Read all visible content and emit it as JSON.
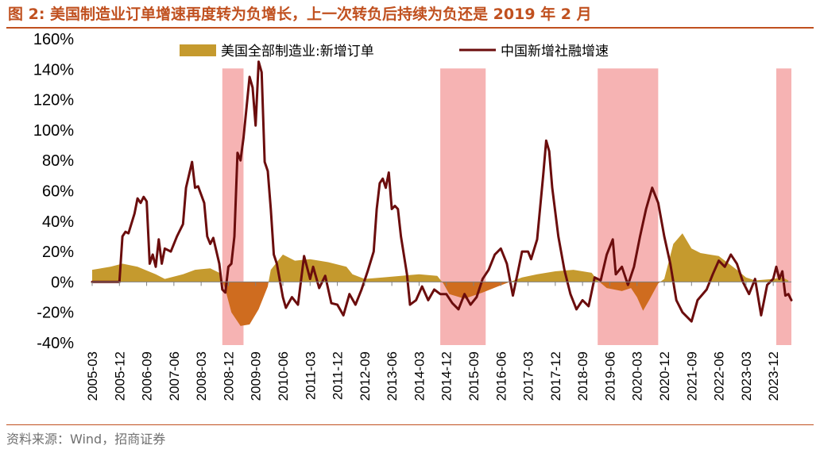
{
  "header": {
    "title": "图 2:  美国制造业订单增速再度转为负增长，上一次转负后持续为负还是 2019 年 2 月"
  },
  "footer": {
    "source": "资料来源：Wind，招商证券"
  },
  "colors": {
    "title": "#c0501f",
    "line": "#6b0d0d",
    "area_positive": "#c59a2e",
    "area_negative": "#cf6c1f",
    "shade": "#f4a6a6"
  },
  "chart_data": {
    "type": "line",
    "title": "",
    "xlabel": "",
    "ylabel": "",
    "ylim": [
      -40,
      160
    ],
    "yticks": [
      "160%",
      "140%",
      "120%",
      "100%",
      "80%",
      "60%",
      "40%",
      "20%",
      "0%",
      "-20%",
      "-40%"
    ],
    "ytick_values": [
      160,
      140,
      120,
      100,
      80,
      60,
      40,
      20,
      0,
      -20,
      -40
    ],
    "xticks": [
      "2005-03",
      "2005-12",
      "2006-09",
      "2007-06",
      "2008-03",
      "2008-12",
      "2009-09",
      "2010-06",
      "2011-03",
      "2011-12",
      "2012-09",
      "2013-06",
      "2014-03",
      "2014-12",
      "2015-09",
      "2016-06",
      "2017-03",
      "2017-12",
      "2018-09",
      "2019-06",
      "2020-03",
      "2020-12",
      "2021-09",
      "2022-06",
      "2023-03",
      "2023-12"
    ],
    "x_range": [
      "2005-03",
      "2024-06"
    ],
    "grid": false,
    "legend_position": "top",
    "legend": {
      "area": "美国全部制造业:新增订单",
      "line": "中国新增社融增速"
    },
    "shaded_periods": [
      {
        "start": "2008-10",
        "end": "2009-05"
      },
      {
        "start": "2014-10",
        "end": "2016-01"
      },
      {
        "start": "2019-02",
        "end": "2020-10"
      },
      {
        "start": "2024-01",
        "end": "2024-06"
      }
    ],
    "series": [
      {
        "name": "美国全部制造业:新增订单",
        "type": "area",
        "points": [
          [
            "2005-03",
            8
          ],
          [
            "2005-09",
            10
          ],
          [
            "2006-01",
            12
          ],
          [
            "2006-06",
            10
          ],
          [
            "2006-12",
            5
          ],
          [
            "2007-03",
            2
          ],
          [
            "2007-09",
            5
          ],
          [
            "2008-01",
            8
          ],
          [
            "2008-06",
            9
          ],
          [
            "2008-09",
            6
          ],
          [
            "2008-11",
            -5
          ],
          [
            "2009-01",
            -20
          ],
          [
            "2009-04",
            -29
          ],
          [
            "2009-07",
            -28
          ],
          [
            "2009-10",
            -18
          ],
          [
            "2010-01",
            -3
          ],
          [
            "2010-02",
            8
          ],
          [
            "2010-06",
            18
          ],
          [
            "2010-10",
            14
          ],
          [
            "2011-03",
            15
          ],
          [
            "2011-09",
            13
          ],
          [
            "2012-03",
            10
          ],
          [
            "2012-05",
            5
          ],
          [
            "2012-09",
            2
          ],
          [
            "2013-03",
            3
          ],
          [
            "2013-09",
            4
          ],
          [
            "2014-03",
            5
          ],
          [
            "2014-09",
            4
          ],
          [
            "2014-11",
            -1
          ],
          [
            "2015-01",
            -8
          ],
          [
            "2015-06",
            -11
          ],
          [
            "2015-12",
            -7
          ],
          [
            "2016-05",
            -3
          ],
          [
            "2016-09",
            0
          ],
          [
            "2017-01",
            3
          ],
          [
            "2017-06",
            5
          ],
          [
            "2017-12",
            7
          ],
          [
            "2018-06",
            8
          ],
          [
            "2018-12",
            6
          ],
          [
            "2019-02",
            1
          ],
          [
            "2019-05",
            -4
          ],
          [
            "2019-10",
            -6
          ],
          [
            "2020-01",
            -4
          ],
          [
            "2020-03",
            -10
          ],
          [
            "2020-05",
            -19
          ],
          [
            "2020-07",
            -12
          ],
          [
            "2020-10",
            -1
          ],
          [
            "2020-12",
            2
          ],
          [
            "2021-03",
            25
          ],
          [
            "2021-06",
            32
          ],
          [
            "2021-09",
            22
          ],
          [
            "2021-12",
            19
          ],
          [
            "2022-06",
            17
          ],
          [
            "2022-12",
            8
          ],
          [
            "2023-03",
            3
          ],
          [
            "2023-06",
            1
          ],
          [
            "2023-12",
            2
          ],
          [
            "2024-03",
            3
          ],
          [
            "2024-05",
            1
          ]
        ]
      },
      {
        "name": "中国新增社融增速",
        "type": "line",
        "points": [
          [
            "2005-03",
            0
          ],
          [
            "2005-05",
            0
          ],
          [
            "2005-08",
            0
          ],
          [
            "2005-11",
            0
          ],
          [
            "2005-12",
            0
          ],
          [
            "2006-01",
            30
          ],
          [
            "2006-02",
            33
          ],
          [
            "2006-03",
            32
          ],
          [
            "2006-05",
            45
          ],
          [
            "2006-06",
            55
          ],
          [
            "2006-07",
            52
          ],
          [
            "2006-08",
            56
          ],
          [
            "2006-09",
            53
          ],
          [
            "2006-10",
            12
          ],
          [
            "2006-11",
            18
          ],
          [
            "2006-12",
            10
          ],
          [
            "2007-01",
            28
          ],
          [
            "2007-02",
            12
          ],
          [
            "2007-03",
            22
          ],
          [
            "2007-05",
            20
          ],
          [
            "2007-07",
            30
          ],
          [
            "2007-09",
            38
          ],
          [
            "2007-10",
            62
          ],
          [
            "2007-12",
            79
          ],
          [
            "2008-01",
            62
          ],
          [
            "2008-02",
            63
          ],
          [
            "2008-04",
            52
          ],
          [
            "2008-05",
            30
          ],
          [
            "2008-06",
            25
          ],
          [
            "2008-07",
            29
          ],
          [
            "2008-09",
            12
          ],
          [
            "2008-10",
            -5
          ],
          [
            "2008-11",
            -7
          ],
          [
            "2008-12",
            10
          ],
          [
            "2009-01",
            12
          ],
          [
            "2009-02",
            30
          ],
          [
            "2009-03",
            85
          ],
          [
            "2009-04",
            80
          ],
          [
            "2009-05",
            95
          ],
          [
            "2009-06",
            115
          ],
          [
            "2009-07",
            135
          ],
          [
            "2009-08",
            128
          ],
          [
            "2009-09",
            103
          ],
          [
            "2009-10",
            145
          ],
          [
            "2009-11",
            138
          ],
          [
            "2009-12",
            79
          ],
          [
            "2010-01",
            73
          ],
          [
            "2010-02",
            48
          ],
          [
            "2010-03",
            18
          ],
          [
            "2010-04",
            12
          ],
          [
            "2010-06",
            -10
          ],
          [
            "2010-07",
            -17
          ],
          [
            "2010-09",
            -10
          ],
          [
            "2010-11",
            -15
          ],
          [
            "2011-01",
            17
          ],
          [
            "2011-03",
            2
          ],
          [
            "2011-04",
            10
          ],
          [
            "2011-06",
            -4
          ],
          [
            "2011-08",
            4
          ],
          [
            "2011-10",
            -14
          ],
          [
            "2011-12",
            -15
          ],
          [
            "2012-02",
            -22
          ],
          [
            "2012-04",
            -8
          ],
          [
            "2012-06",
            -15
          ],
          [
            "2012-08",
            -5
          ],
          [
            "2012-10",
            7
          ],
          [
            "2012-12",
            20
          ],
          [
            "2013-01",
            48
          ],
          [
            "2013-02",
            65
          ],
          [
            "2013-03",
            68
          ],
          [
            "2013-04",
            62
          ],
          [
            "2013-05",
            72
          ],
          [
            "2013-06",
            48
          ],
          [
            "2013-07",
            50
          ],
          [
            "2013-08",
            48
          ],
          [
            "2013-09",
            30
          ],
          [
            "2013-11",
            5
          ],
          [
            "2013-12",
            -15
          ],
          [
            "2014-02",
            -12
          ],
          [
            "2014-04",
            -3
          ],
          [
            "2014-06",
            -12
          ],
          [
            "2014-08",
            -5
          ],
          [
            "2014-10",
            -8
          ],
          [
            "2014-12",
            -8
          ],
          [
            "2015-02",
            -14
          ],
          [
            "2015-04",
            -18
          ],
          [
            "2015-06",
            -8
          ],
          [
            "2015-08",
            -15
          ],
          [
            "2015-10",
            -10
          ],
          [
            "2015-12",
            2
          ],
          [
            "2016-02",
            8
          ],
          [
            "2016-04",
            18
          ],
          [
            "2016-06",
            22
          ],
          [
            "2016-08",
            12
          ],
          [
            "2016-10",
            -9
          ],
          [
            "2016-12",
            10
          ],
          [
            "2017-01",
            20
          ],
          [
            "2017-03",
            20
          ],
          [
            "2017-04",
            15
          ],
          [
            "2017-06",
            28
          ],
          [
            "2017-08",
            70
          ],
          [
            "2017-09",
            93
          ],
          [
            "2017-10",
            86
          ],
          [
            "2017-11",
            62
          ],
          [
            "2018-01",
            30
          ],
          [
            "2018-03",
            8
          ],
          [
            "2018-05",
            -8
          ],
          [
            "2018-07",
            -18
          ],
          [
            "2018-09",
            -12
          ],
          [
            "2018-11",
            -16
          ],
          [
            "2019-01",
            3
          ],
          [
            "2019-03",
            1
          ],
          [
            "2019-05",
            18
          ],
          [
            "2019-07",
            28
          ],
          [
            "2019-08",
            5
          ],
          [
            "2019-10",
            10
          ],
          [
            "2019-12",
            -2
          ],
          [
            "2020-02",
            10
          ],
          [
            "2020-04",
            30
          ],
          [
            "2020-06",
            48
          ],
          [
            "2020-08",
            62
          ],
          [
            "2020-10",
            52
          ],
          [
            "2020-12",
            30
          ],
          [
            "2021-02",
            12
          ],
          [
            "2021-04",
            -12
          ],
          [
            "2021-06",
            -20
          ],
          [
            "2021-09",
            -26
          ],
          [
            "2021-11",
            -12
          ],
          [
            "2022-02",
            -5
          ],
          [
            "2022-04",
            5
          ],
          [
            "2022-06",
            14
          ],
          [
            "2022-08",
            10
          ],
          [
            "2022-10",
            18
          ],
          [
            "2022-12",
            12
          ],
          [
            "2023-02",
            0
          ],
          [
            "2023-04",
            -8
          ],
          [
            "2023-06",
            2
          ],
          [
            "2023-08",
            -22
          ],
          [
            "2023-10",
            -2
          ],
          [
            "2023-12",
            2
          ],
          [
            "2024-01",
            10
          ],
          [
            "2024-02",
            2
          ],
          [
            "2024-03",
            7
          ],
          [
            "2024-04",
            -9
          ],
          [
            "2024-05",
            -8
          ],
          [
            "2024-06",
            -12
          ]
        ]
      }
    ]
  }
}
